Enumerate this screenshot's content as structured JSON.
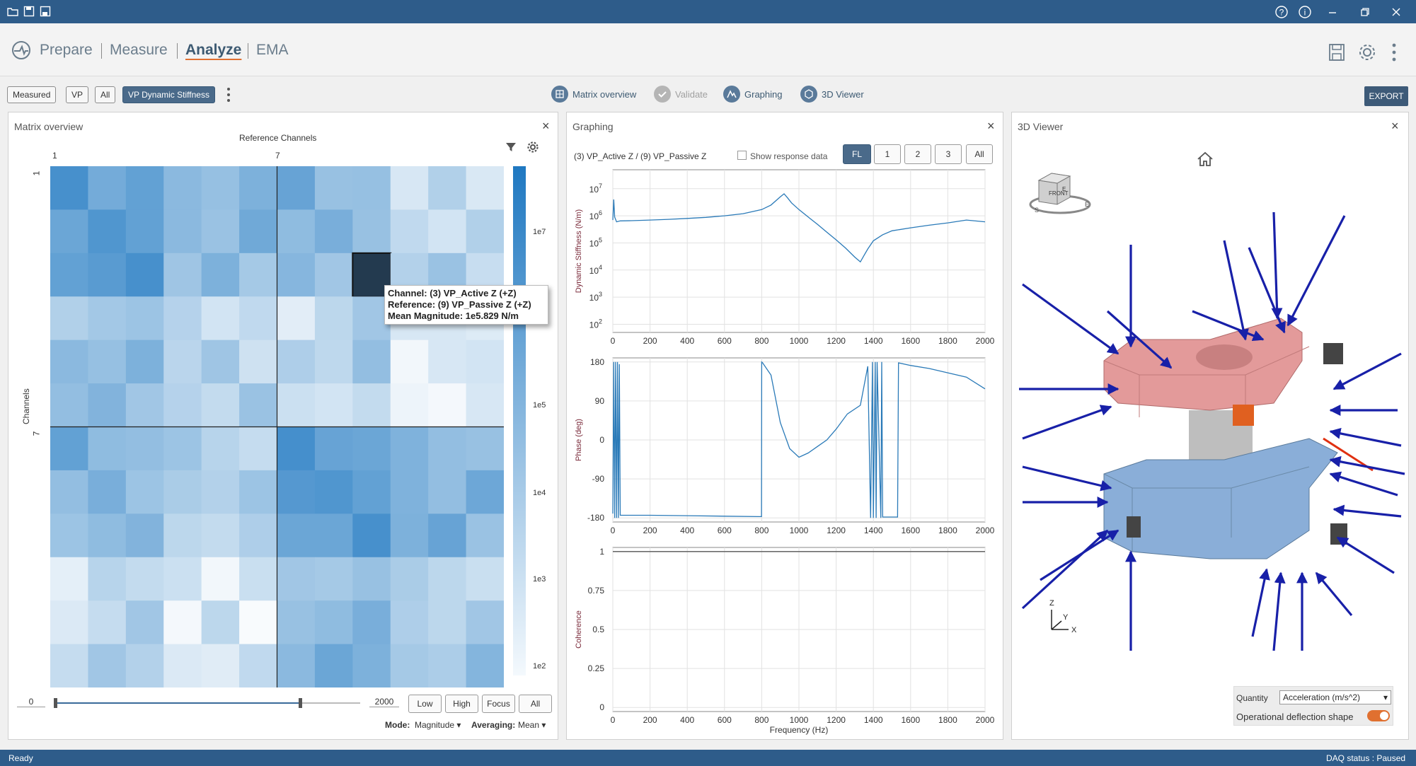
{
  "titlebar": {
    "icons": [
      "open-folder-icon",
      "save-icon",
      "save-as-icon"
    ],
    "right_icons": [
      "help-icon",
      "info-icon",
      "minimize-icon",
      "restore-icon",
      "close-icon"
    ]
  },
  "nav": {
    "items": [
      "Prepare",
      "Measure",
      "Analyze",
      "EMA"
    ],
    "active": "Analyze"
  },
  "toolbar": {
    "filters": [
      "Measured",
      "VP",
      "All",
      "VP Dynamic Stiffness"
    ],
    "selected_filter": "VP Dynamic Stiffness",
    "tools": [
      "Matrix overview",
      "Validate",
      "Graphing",
      "3D Viewer"
    ],
    "export_label": "EXPORT"
  },
  "matrix": {
    "title": "Matrix overview",
    "x_title": "Reference Channels",
    "y_title": "Channels",
    "x_ticks": [
      "1",
      "7"
    ],
    "y_ticks": [
      "1",
      "7"
    ],
    "colorbar_labels": [
      "1e7",
      "1e5",
      "1e4",
      "1e3",
      "1e2"
    ],
    "range_min": "0",
    "range_max": "2000",
    "range_buttons": [
      "Low",
      "High",
      "Focus",
      "All"
    ],
    "mode_label": "Mode:",
    "mode_value": "Magnitude",
    "averaging_label": "Averaging:",
    "averaging_value": "Mean",
    "tooltip": {
      "channel": "Channel: (3) VP_Active Z (+Z)",
      "reference": "Reference: (9) VP_Passive Z (+Z)",
      "magnitude": "Mean Magnitude: 1e5.829 N/m"
    },
    "cells": [
      [
        0.82,
        0.62,
        0.7,
        0.52,
        0.47,
        0.58,
        0.68,
        0.46,
        0.47,
        0.18,
        0.35,
        0.17
      ],
      [
        0.66,
        0.78,
        0.7,
        0.52,
        0.45,
        0.64,
        0.5,
        0.6,
        0.46,
        0.28,
        0.2,
        0.35
      ],
      [
        0.7,
        0.74,
        0.82,
        0.43,
        0.58,
        0.4,
        0.54,
        0.42,
        1.0,
        0.34,
        0.45,
        0.25
      ],
      [
        0.35,
        0.41,
        0.44,
        0.33,
        0.2,
        0.28,
        0.13,
        0.3,
        0.42,
        0.18,
        0.18,
        0.15
      ],
      [
        0.52,
        0.47,
        0.58,
        0.31,
        0.43,
        0.22,
        0.36,
        0.29,
        0.48,
        0.06,
        0.18,
        0.2
      ],
      [
        0.48,
        0.56,
        0.42,
        0.33,
        0.27,
        0.45,
        0.23,
        0.2,
        0.27,
        0.08,
        0.05,
        0.18
      ],
      [
        0.7,
        0.5,
        0.48,
        0.44,
        0.32,
        0.26,
        0.83,
        0.68,
        0.66,
        0.57,
        0.48,
        0.46
      ],
      [
        0.48,
        0.6,
        0.44,
        0.38,
        0.34,
        0.44,
        0.76,
        0.78,
        0.7,
        0.57,
        0.48,
        0.65
      ],
      [
        0.44,
        0.5,
        0.56,
        0.3,
        0.27,
        0.36,
        0.66,
        0.66,
        0.82,
        0.58,
        0.68,
        0.45
      ],
      [
        0.12,
        0.32,
        0.27,
        0.23,
        0.06,
        0.24,
        0.42,
        0.4,
        0.46,
        0.38,
        0.3,
        0.24
      ],
      [
        0.16,
        0.26,
        0.42,
        0.05,
        0.3,
        0.03,
        0.46,
        0.5,
        0.6,
        0.36,
        0.3,
        0.42
      ],
      [
        0.26,
        0.42,
        0.34,
        0.16,
        0.14,
        0.28,
        0.52,
        0.66,
        0.58,
        0.4,
        0.37,
        0.55
      ]
    ]
  },
  "graphing": {
    "title": "Graphing",
    "subtitle": "(3) VP_Active Z / (9) VP_Passive Z",
    "show_response_label": "Show response data",
    "segments": [
      "FL",
      "1",
      "2",
      "3",
      "All"
    ],
    "selected_segment": "FL",
    "x_ticks": [
      "0",
      "200",
      "400",
      "600",
      "800",
      "1000",
      "1200",
      "1400",
      "1600",
      "1800",
      "2000"
    ],
    "x_label": "Frequency (Hz)"
  },
  "chart_data": [
    {
      "type": "line",
      "ylabel": "Dynamic Stiffness (N/m)",
      "yscale": "log",
      "y_ticks": [
        "10",
        "10",
        "10",
        "10",
        "10",
        "10"
      ],
      "y_tick_exponents": [
        "7",
        "6",
        "5",
        "4",
        "3",
        "2"
      ],
      "xlim": [
        0,
        2000
      ],
      "ylim": [
        50,
        50000000
      ],
      "x": [
        0,
        5,
        10,
        20,
        40,
        100,
        200,
        300,
        400,
        500,
        600,
        700,
        800,
        850,
        900,
        920,
        940,
        960,
        1000,
        1050,
        1100,
        1150,
        1200,
        1250,
        1300,
        1330,
        1350,
        1370,
        1400,
        1450,
        1500,
        1600,
        1700,
        1800,
        1900,
        2000
      ],
      "y": [
        700000,
        4000000,
        900000,
        600000,
        650000,
        660000,
        700000,
        740000,
        800000,
        880000,
        1000000,
        1200000,
        1700000,
        2500000,
        5000000,
        6500000,
        4500000,
        3000000,
        1700000,
        900000,
        480000,
        250000,
        130000,
        65000,
        30000,
        20000,
        35000,
        60000,
        120000,
        200000,
        280000,
        360000,
        450000,
        550000,
        700000,
        600000
      ]
    },
    {
      "type": "line",
      "ylabel": "Phase (deg)",
      "y_ticks": [
        "180",
        "90",
        "0",
        "-90",
        "-180"
      ],
      "xlim": [
        0,
        2000
      ],
      "ylim": [
        -180,
        180
      ],
      "x": [
        0,
        5,
        10,
        15,
        20,
        25,
        30,
        35,
        40,
        200,
        400,
        600,
        780,
        799,
        800,
        805,
        850,
        900,
        950,
        1000,
        1050,
        1100,
        1150,
        1200,
        1260,
        1330,
        1370,
        1385,
        1395,
        1400,
        1410,
        1415,
        1420,
        1440,
        1445,
        1450,
        1460,
        1530,
        1535,
        1600,
        1700,
        1800,
        1900,
        2000
      ],
      "y": [
        -170,
        180,
        -180,
        180,
        -180,
        180,
        -180,
        175,
        -174,
        -174,
        -175,
        -176,
        -177,
        -177,
        180,
        178,
        150,
        40,
        -20,
        -40,
        -30,
        -15,
        0,
        25,
        60,
        80,
        170,
        -180,
        180,
        -180,
        180,
        -180,
        180,
        -180,
        180,
        -178,
        -178,
        -178,
        178,
        172,
        165,
        155,
        145,
        118
      ]
    },
    {
      "type": "line",
      "ylabel": "Coherence",
      "y_ticks": [
        "1",
        "0.75",
        "0.5",
        "0.25",
        "0"
      ],
      "xlim": [
        0,
        2000
      ],
      "ylim": [
        0,
        1
      ],
      "x": [
        0,
        2000
      ],
      "y": [
        1,
        1
      ]
    }
  ],
  "viewer": {
    "title": "3D Viewer",
    "cube_face": "FRONT",
    "cube_side": "E",
    "compass": [
      "S",
      "E"
    ],
    "axis_labels": [
      "Z",
      "Y",
      "X"
    ],
    "quantity_label": "Quantity",
    "quantity_value": "Acceleration (m/s^2)",
    "ods_label": "Operational deflection shape",
    "ods_enabled": true
  },
  "status": {
    "left": "Ready",
    "right": "DAQ status : Paused"
  },
  "colors": {
    "titlebar": "#2e5c8a",
    "accent": "#e07030",
    "heat_low": "#ffffff",
    "heat_high": "#1f78c1",
    "selected_cell": "#233a4f",
    "line": "#2a7ab8"
  }
}
